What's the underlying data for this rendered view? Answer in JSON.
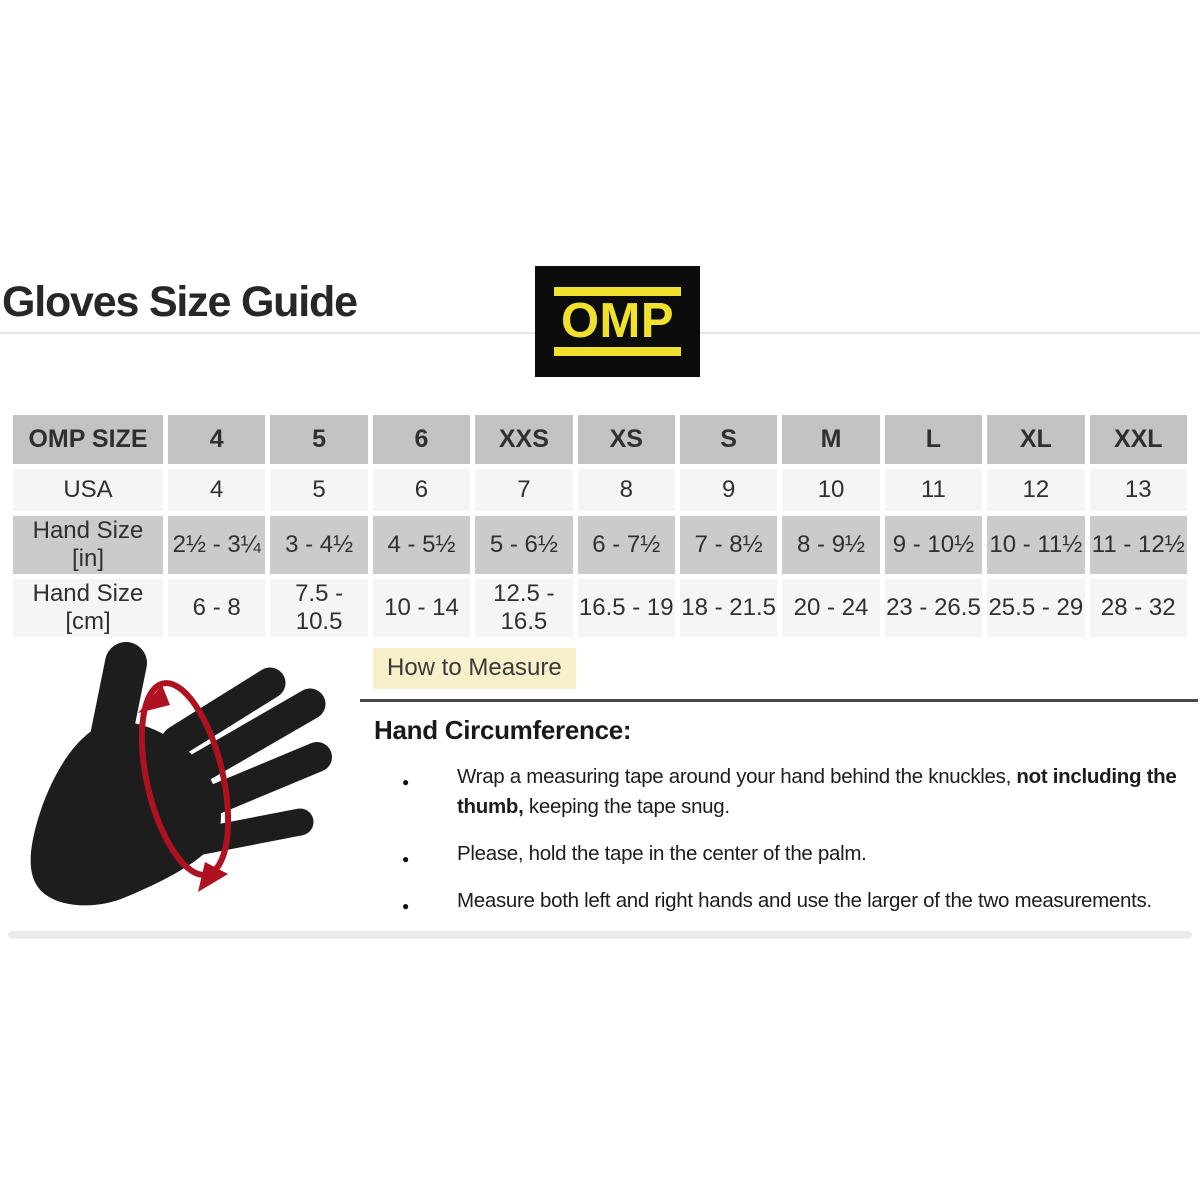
{
  "page": {
    "title": "Gloves Size Guide"
  },
  "logo": {
    "text": "OMP"
  },
  "size_table": {
    "header": [
      "OMP SIZE",
      "4",
      "5",
      "6",
      "XXS",
      "XS",
      "S",
      "M",
      "L",
      "XL",
      "XXL"
    ],
    "rows": [
      {
        "label": "USA",
        "values": [
          "4",
          "5",
          "6",
          "7",
          "8",
          "9",
          "10",
          "11",
          "12",
          "13"
        ]
      },
      {
        "label": "Hand Size [in]",
        "values": [
          "2½ - 3¼",
          "3 - 4½",
          "4 - 5½",
          "5 - 6½",
          "6 - 7½",
          "7 - 8½",
          "8 - 9½",
          "9 - 10½",
          "10 - 11½",
          "11 - 12½"
        ]
      },
      {
        "label": "Hand Size [cm]",
        "values": [
          "6 - 8",
          "7.5 - 10.5",
          "10 - 14",
          "12.5 - 16.5",
          "16.5 - 19",
          "18 - 21.5",
          "20 - 24",
          "23 - 26.5",
          "25.5 - 29",
          "28 - 32"
        ]
      }
    ]
  },
  "measure_section": {
    "highlight_title": "How to Measure",
    "subheading": "Hand Circumference:",
    "bullets": [
      {
        "pre": "Wrap a measuring tape around your hand behind the knuckles, ",
        "bold": "not including the thumb,",
        "post": " keeping the tape snug."
      },
      {
        "pre": "Please, hold the tape in the center of the palm.",
        "bold": "",
        "post": ""
      },
      {
        "pre": "Measure both left and right hands and use the larger of the two measurements.",
        "bold": "",
        "post": ""
      }
    ]
  },
  "figure": {
    "description": "black hand silhouette with red measuring-tape arrow around palm"
  },
  "colors": {
    "brand_yellow": "#F0E12E",
    "logo_black": "#0C0C0C",
    "highlight_yellow": "#F7F0CA",
    "tape_red": "#AE1220",
    "table_gray": "#C3C3C3",
    "table_light": "#F5F5F5"
  }
}
